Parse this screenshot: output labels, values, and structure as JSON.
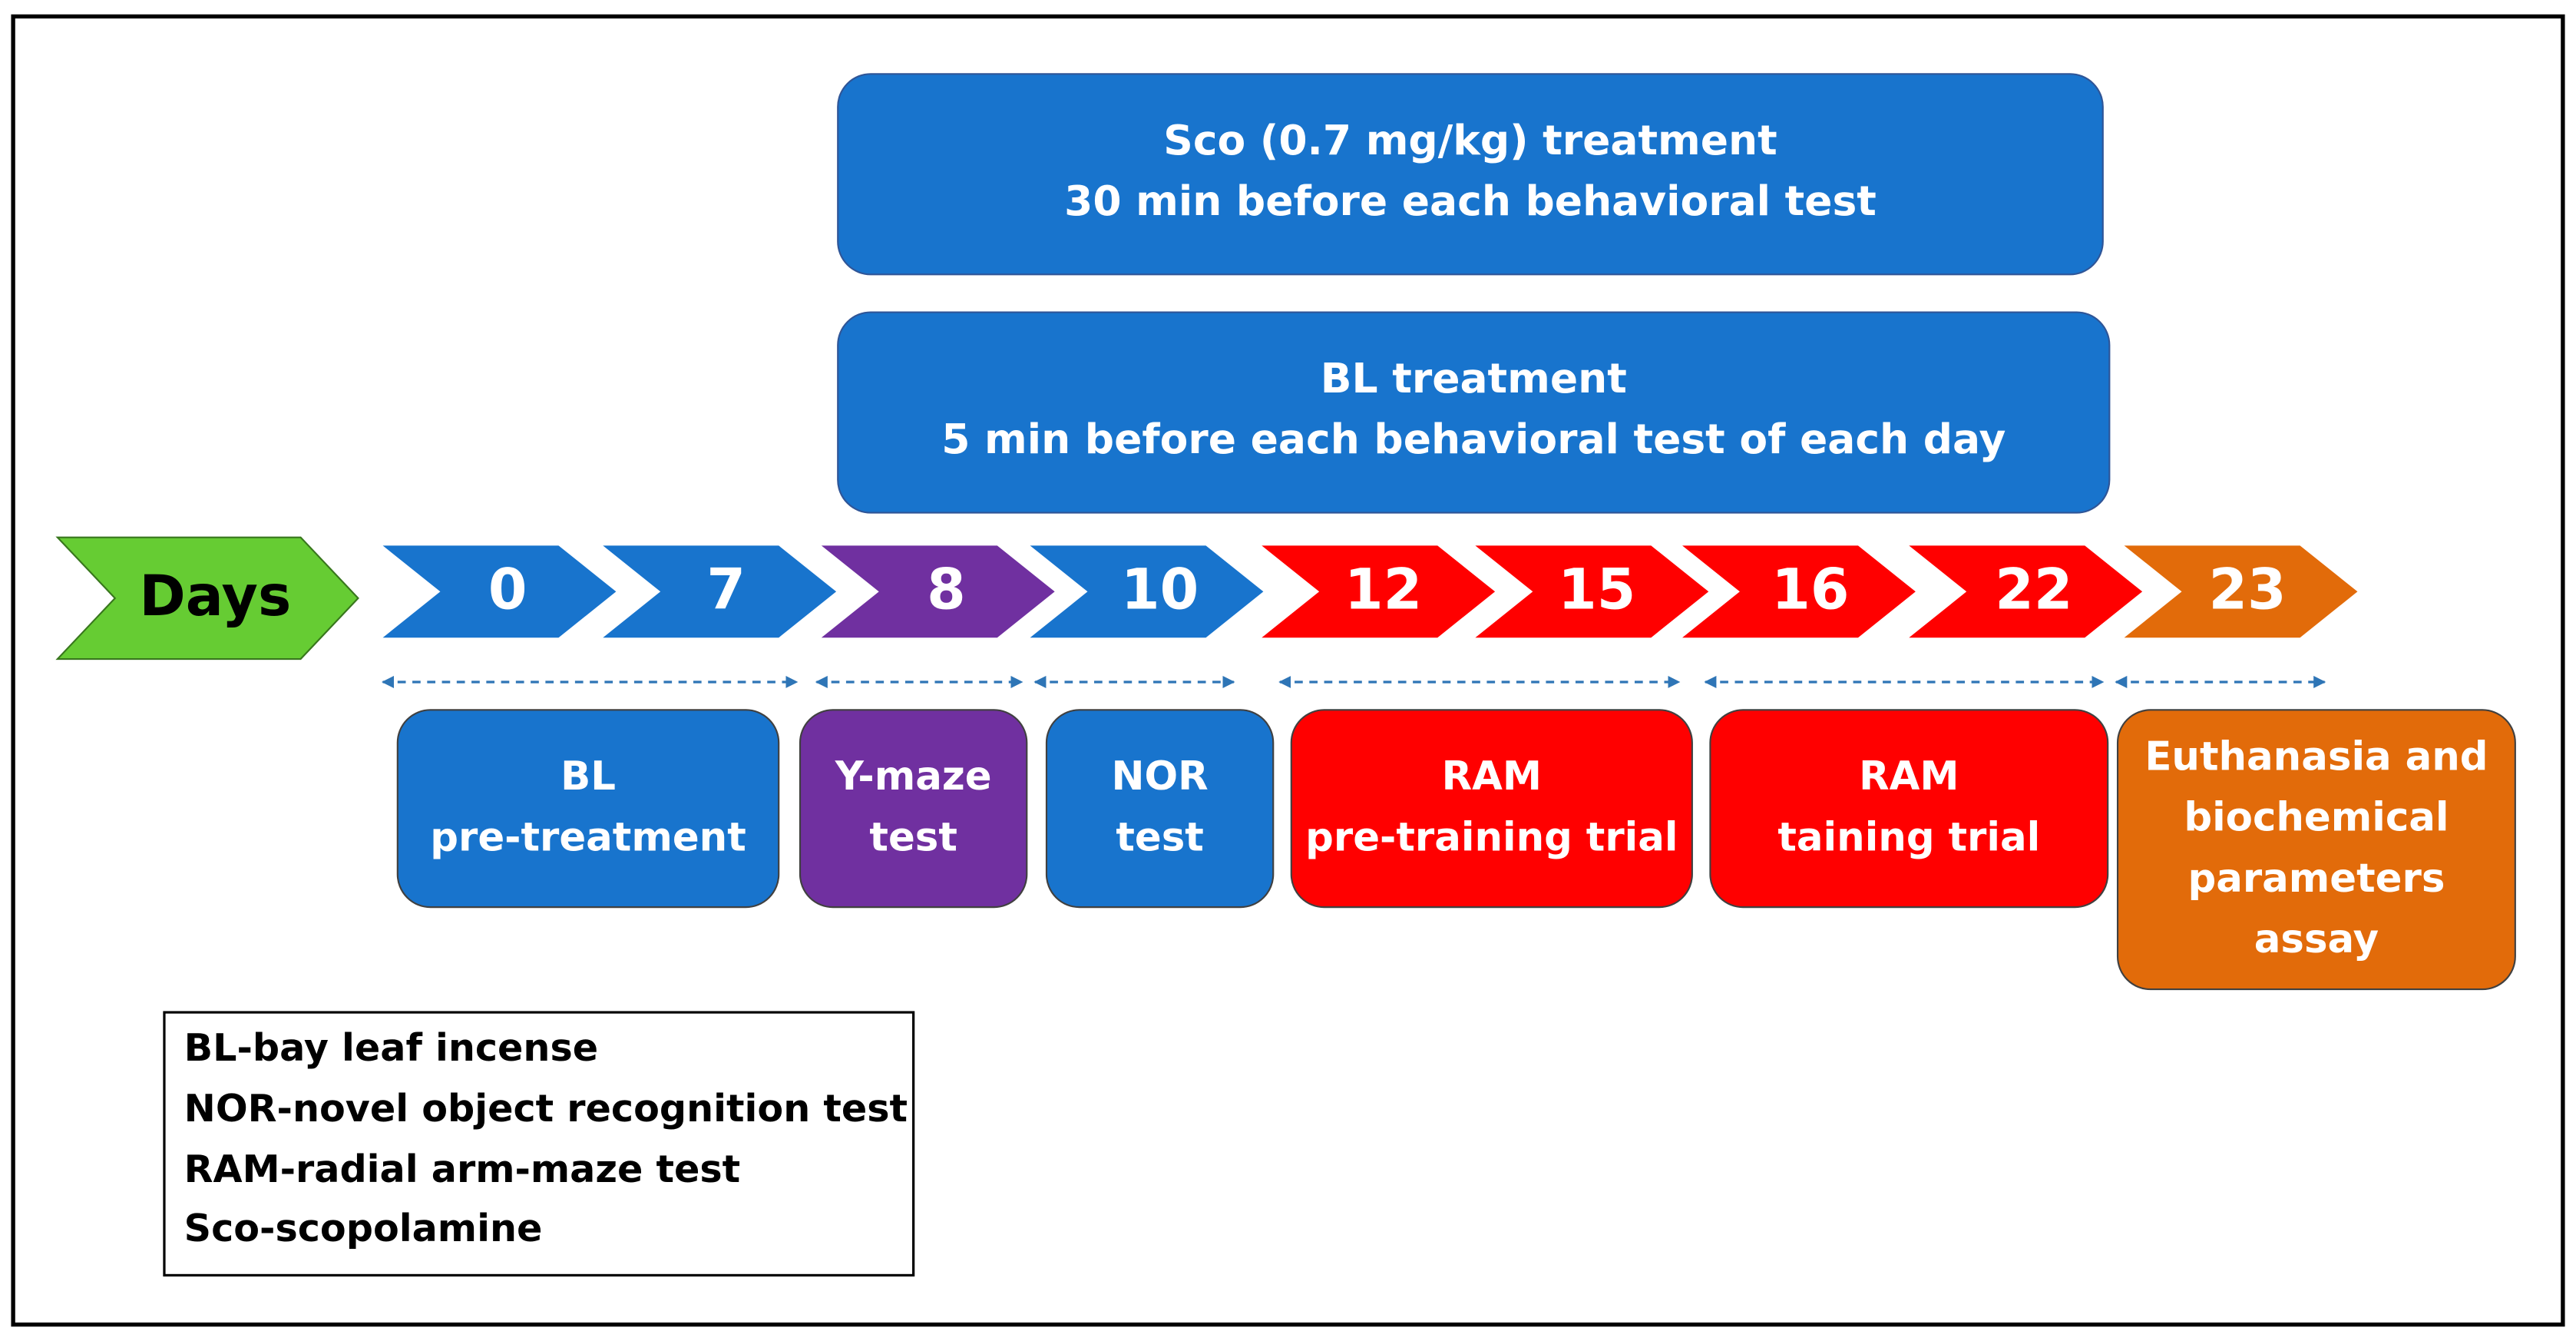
{
  "treatments": [
    {
      "lines": [
        "Sco (0.7 mg/kg) treatment",
        "30 min before each behavioral test"
      ]
    },
    {
      "lines": [
        "BL treatment",
        "5 min before each behavioral test of each day"
      ]
    }
  ],
  "timeline": {
    "label": "Days",
    "days": [
      "0",
      "7",
      "8",
      "10",
      "12",
      "15",
      "16",
      "22",
      "23"
    ]
  },
  "phases": [
    {
      "lines": [
        "BL",
        "pre-treatment"
      ]
    },
    {
      "lines": [
        "Y-maze",
        "test"
      ]
    },
    {
      "lines": [
        "NOR",
        "test"
      ]
    },
    {
      "lines": [
        "RAM",
        "pre-training trial"
      ]
    },
    {
      "lines": [
        "RAM",
        "taining trial"
      ]
    },
    {
      "lines": [
        "Euthanasia and",
        "biochemical",
        "parameters",
        "assay"
      ]
    }
  ],
  "legend": [
    "BL-bay leaf incense",
    "NOR-novel object recognition test",
    "RAM-radial arm-maze test",
    "Sco-scopolamine"
  ]
}
